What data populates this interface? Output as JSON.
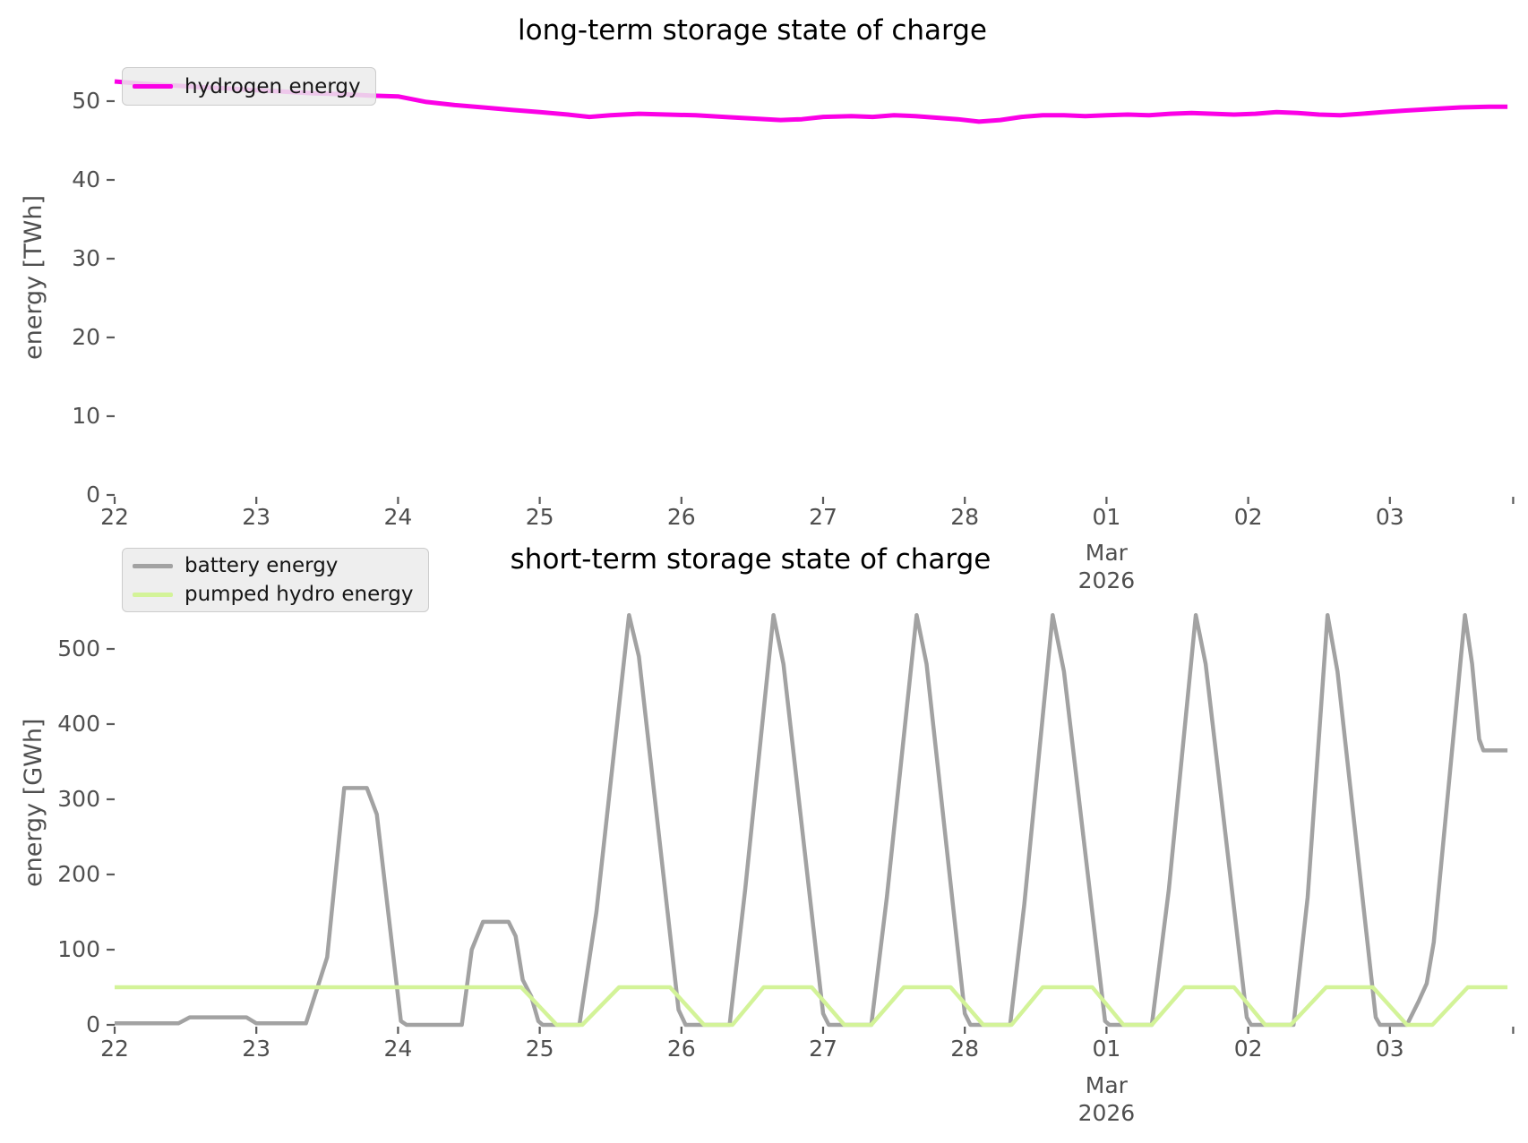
{
  "figure": {
    "background": "#ffffff",
    "tick_color": "#5a5a5a",
    "label_color": "#4f4f4f"
  },
  "chart_data": [
    {
      "type": "line",
      "title": "long-term storage state of charge",
      "xlabel": "",
      "ylabel": "energy [TWh]",
      "x_axis_note": "dates Feb 22 - Mar 03, 2026",
      "x_tick_labels": [
        "22",
        "23",
        "24",
        "25",
        "26",
        "27",
        "28",
        "01",
        "02",
        "03"
      ],
      "x_ticks": [
        0,
        1,
        2,
        3,
        4,
        5,
        6,
        7,
        8,
        9
      ],
      "x_end_tick": 9.87,
      "x_sub_label": {
        "at": 7,
        "lines": [
          "Mar",
          "2026"
        ]
      },
      "y_ticks": [
        0,
        10,
        20,
        30,
        40,
        50
      ],
      "ylim": [
        0,
        53
      ],
      "xlim": [
        0,
        9.88
      ],
      "grid": false,
      "legend_position": "upper left",
      "series": [
        {
          "name": "hydrogen energy",
          "color": "#fb00e6",
          "width": 5,
          "points": [
            [
              0,
              52.5
            ],
            [
              0.2,
              52.2
            ],
            [
              0.4,
              52.0
            ],
            [
              0.6,
              51.8
            ],
            [
              0.8,
              51.6
            ],
            [
              1.0,
              51.4
            ],
            [
              1.2,
              51.2
            ],
            [
              1.4,
              51.0
            ],
            [
              1.6,
              50.9
            ],
            [
              1.8,
              50.7
            ],
            [
              2.0,
              50.6
            ],
            [
              2.2,
              49.9
            ],
            [
              2.4,
              49.5
            ],
            [
              2.6,
              49.2
            ],
            [
              2.8,
              48.9
            ],
            [
              3.0,
              48.6
            ],
            [
              3.2,
              48.3
            ],
            [
              3.35,
              48.0
            ],
            [
              3.5,
              48.2
            ],
            [
              3.7,
              48.4
            ],
            [
              3.9,
              48.3
            ],
            [
              4.1,
              48.2
            ],
            [
              4.3,
              48.0
            ],
            [
              4.5,
              47.8
            ],
            [
              4.7,
              47.6
            ],
            [
              4.85,
              47.7
            ],
            [
              5.0,
              48.0
            ],
            [
              5.2,
              48.1
            ],
            [
              5.35,
              48.0
            ],
            [
              5.5,
              48.2
            ],
            [
              5.65,
              48.1
            ],
            [
              5.8,
              47.9
            ],
            [
              5.95,
              47.7
            ],
            [
              6.1,
              47.4
            ],
            [
              6.25,
              47.6
            ],
            [
              6.4,
              48.0
            ],
            [
              6.55,
              48.2
            ],
            [
              6.7,
              48.2
            ],
            [
              6.85,
              48.1
            ],
            [
              7.0,
              48.2
            ],
            [
              7.15,
              48.3
            ],
            [
              7.3,
              48.2
            ],
            [
              7.45,
              48.4
            ],
            [
              7.6,
              48.5
            ],
            [
              7.75,
              48.4
            ],
            [
              7.9,
              48.3
            ],
            [
              8.05,
              48.4
            ],
            [
              8.2,
              48.6
            ],
            [
              8.35,
              48.5
            ],
            [
              8.5,
              48.3
            ],
            [
              8.65,
              48.2
            ],
            [
              8.8,
              48.4
            ],
            [
              8.95,
              48.6
            ],
            [
              9.1,
              48.8
            ],
            [
              9.3,
              49.0
            ],
            [
              9.5,
              49.2
            ],
            [
              9.7,
              49.3
            ],
            [
              9.83,
              49.3
            ]
          ]
        }
      ]
    },
    {
      "type": "line",
      "title": "short-term storage state of charge",
      "xlabel": "",
      "ylabel": "energy [GWh]",
      "x_axis_note": "dates Feb 22 - Mar 03, 2026",
      "x_tick_labels": [
        "22",
        "23",
        "24",
        "25",
        "26",
        "27",
        "28",
        "01",
        "02",
        "03"
      ],
      "x_ticks": [
        0,
        1,
        2,
        3,
        4,
        5,
        6,
        7,
        8,
        9
      ],
      "x_end_tick": 9.87,
      "x_sub_label": {
        "at": 7,
        "lines": [
          "Mar",
          "2026"
        ]
      },
      "y_ticks": [
        0,
        100,
        200,
        300,
        400,
        500
      ],
      "ylim": [
        0,
        560
      ],
      "xlim": [
        0,
        9.88
      ],
      "grid": false,
      "legend_position": "upper left",
      "series": [
        {
          "name": "battery energy",
          "color": "#a2a2a2",
          "width": 4.5,
          "points": [
            [
              0,
              2
            ],
            [
              0.45,
              2
            ],
            [
              0.53,
              10
            ],
            [
              0.93,
              10
            ],
            [
              1.0,
              2
            ],
            [
              1.35,
              2
            ],
            [
              1.5,
              90
            ],
            [
              1.62,
              315
            ],
            [
              1.78,
              315
            ],
            [
              1.85,
              280
            ],
            [
              2.02,
              5
            ],
            [
              2.06,
              0
            ],
            [
              2.45,
              0
            ],
            [
              2.52,
              100
            ],
            [
              2.6,
              137
            ],
            [
              2.78,
              137
            ],
            [
              2.83,
              118
            ],
            [
              2.88,
              60
            ],
            [
              2.94,
              38
            ],
            [
              2.99,
              5
            ],
            [
              3.02,
              0
            ],
            [
              3.28,
              0
            ],
            [
              3.4,
              150
            ],
            [
              3.63,
              545
            ],
            [
              3.7,
              490
            ],
            [
              3.98,
              20
            ],
            [
              4.03,
              0
            ],
            [
              4.34,
              0
            ],
            [
              4.45,
              180
            ],
            [
              4.65,
              545
            ],
            [
              4.72,
              480
            ],
            [
              5.0,
              15
            ],
            [
              5.04,
              0
            ],
            [
              5.34,
              0
            ],
            [
              5.45,
              170
            ],
            [
              5.66,
              545
            ],
            [
              5.73,
              480
            ],
            [
              6.0,
              15
            ],
            [
              6.04,
              0
            ],
            [
              6.32,
              0
            ],
            [
              6.42,
              160
            ],
            [
              6.62,
              545
            ],
            [
              6.7,
              470
            ],
            [
              6.99,
              5
            ],
            [
              7.02,
              0
            ],
            [
              7.32,
              0
            ],
            [
              7.44,
              180
            ],
            [
              7.63,
              545
            ],
            [
              7.7,
              480
            ],
            [
              7.99,
              10
            ],
            [
              8.02,
              0
            ],
            [
              8.32,
              0
            ],
            [
              8.42,
              170
            ],
            [
              8.56,
              545
            ],
            [
              8.63,
              470
            ],
            [
              8.9,
              10
            ],
            [
              8.93,
              0
            ],
            [
              9.12,
              0
            ],
            [
              9.2,
              30
            ],
            [
              9.26,
              55
            ],
            [
              9.31,
              110
            ],
            [
              9.53,
              545
            ],
            [
              9.58,
              480
            ],
            [
              9.63,
              380
            ],
            [
              9.66,
              365
            ],
            [
              9.83,
              365
            ]
          ]
        },
        {
          "name": "pumped hydro energy",
          "color": "#d3f398",
          "width": 4.5,
          "points": [
            [
              0,
              50
            ],
            [
              2.87,
              50
            ],
            [
              3.12,
              0
            ],
            [
              3.3,
              0
            ],
            [
              3.56,
              50
            ],
            [
              3.92,
              50
            ],
            [
              4.16,
              0
            ],
            [
              4.36,
              0
            ],
            [
              4.58,
              50
            ],
            [
              4.92,
              50
            ],
            [
              5.15,
              0
            ],
            [
              5.34,
              0
            ],
            [
              5.57,
              50
            ],
            [
              5.9,
              50
            ],
            [
              6.13,
              0
            ],
            [
              6.33,
              0
            ],
            [
              6.55,
              50
            ],
            [
              6.9,
              50
            ],
            [
              7.12,
              0
            ],
            [
              7.32,
              0
            ],
            [
              7.55,
              50
            ],
            [
              7.9,
              50
            ],
            [
              8.12,
              0
            ],
            [
              8.3,
              0
            ],
            [
              8.55,
              50
            ],
            [
              8.88,
              50
            ],
            [
              9.12,
              0
            ],
            [
              9.3,
              0
            ],
            [
              9.55,
              50
            ],
            [
              9.83,
              50
            ]
          ]
        }
      ]
    }
  ]
}
